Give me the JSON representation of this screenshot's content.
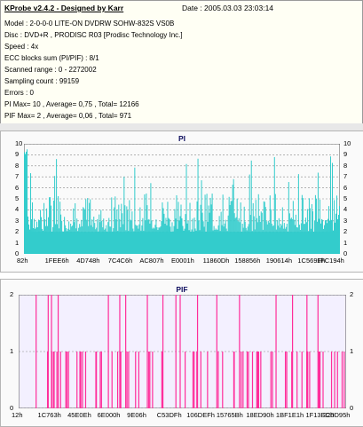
{
  "header": {
    "title": "KProbe v2.4.2 - Designed by Karr",
    "date": "Date : 2005.03.03 23:03:14"
  },
  "info_lines": [
    "Model : 2-0-0-0 LITE-ON DVDRW SOHW-832S  VS0B",
    "Disc : DVD+R , PRODISC R03 [Prodisc Technology Inc.]",
    "Speed : 4x",
    "ECC blocks sum (PI/PIF) : 8/1",
    "Scanned range : 0 - 2272002",
    "Sampling count : 99159",
    "Errors : 0",
    "PI Max= 10 , Average= 0,75 , Total= 12166",
    "PIF Max= 2 , Average= 0,06 , Total= 971"
  ],
  "colors": {
    "pi_bar": "#33cccc",
    "pif_bar": "#ff2d9a",
    "pi_bg": "#fafafa",
    "pif_bg": "#f3f0ff"
  },
  "chart_data": [
    {
      "type": "bar",
      "title": "PI",
      "ylim": [
        0,
        10
      ],
      "yticks_left": [
        "10",
        "9",
        "8",
        "7",
        "6",
        "5",
        "4",
        "3",
        "2",
        "1",
        "0"
      ],
      "yticks_right": [
        "10",
        "9",
        "8",
        "7",
        "6",
        "5",
        "4",
        "3",
        "2",
        "1",
        "0"
      ],
      "xticks": [
        "82h",
        "1FEE6h",
        "4D748h",
        "7C4C6h",
        "AC807h",
        "E0001h",
        "11860Dh",
        "158856h",
        "190614h",
        "1C569Fh",
        "1FC194h"
      ],
      "grid": "dashed-horizontal",
      "summary": {
        "max": 10,
        "average": 0.75,
        "total": 12166
      }
    },
    {
      "type": "bar",
      "title": "PIF",
      "ylim": [
        0,
        2
      ],
      "yticks_left": [
        "2",
        "1",
        "0"
      ],
      "yticks_right": [
        "2",
        "1",
        "0"
      ],
      "xticks": [
        "12h",
        "1C763h",
        "45E0Eh",
        "6E000h",
        "9E06h",
        "C53DFh",
        "106DEFh",
        "15765Bh",
        "18ED90h",
        "1BF1E1h",
        "1F13ECh",
        "220D95h"
      ],
      "grid": "dashed-horizontal",
      "summary": {
        "max": 2,
        "average": 0.06,
        "total": 971
      }
    }
  ]
}
